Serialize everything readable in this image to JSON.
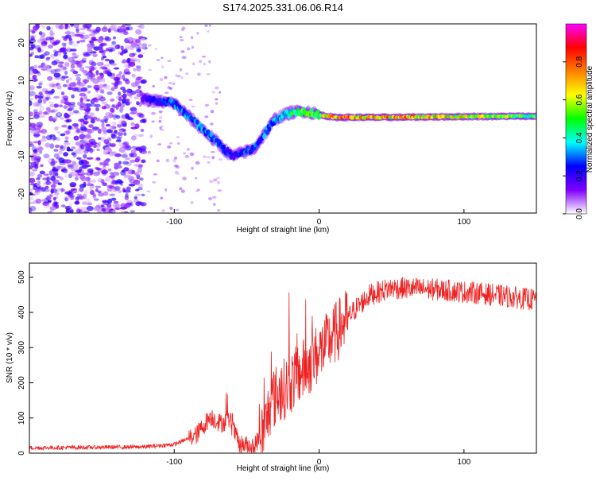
{
  "title": "S174.2025.331.06.06.R14",
  "chart_data": [
    {
      "type": "heatmap",
      "name": "spectrogram",
      "xlabel": "Height of straight line (km)",
      "ylabel": "Frequency (Hz)",
      "xlim": [
        -200,
        150
      ],
      "ylim": [
        -25,
        25
      ],
      "xticks": [
        -100,
        0,
        100
      ],
      "yticks": [
        -20,
        -10,
        0,
        10,
        20
      ],
      "colorbar": {
        "label": "Normalized spectral amplitude",
        "range": [
          0,
          1
        ],
        "ticks": [
          "0.0",
          "0.2",
          "0.4",
          "0.6",
          "0.8"
        ],
        "colors": [
          "#ffffff",
          "#8000ff",
          "#0000ff",
          "#00ffff",
          "#00ff00",
          "#ffff00",
          "#ff8000",
          "#ff0000",
          "#ff00ff"
        ]
      },
      "ridge": {
        "x": [
          -120,
          -100,
          -80,
          -60,
          -45,
          -30,
          -20,
          -10,
          0,
          10,
          50,
          100,
          150
        ],
        "f": [
          5,
          4,
          -3,
          -10,
          -8,
          0,
          1.5,
          2,
          1,
          0.3,
          0.3,
          0.5,
          0.6
        ],
        "peak_amplitude": [
          0.25,
          0.35,
          0.4,
          0.3,
          0.35,
          0.4,
          0.55,
          0.6,
          0.65,
          0.95,
          0.9,
          0.75,
          0.6
        ]
      },
      "noise_region_x": [
        -200,
        -120
      ]
    },
    {
      "type": "line",
      "name": "snr",
      "xlabel": "Height of straight line (km)",
      "ylabel": "SNR (10 * v/v)",
      "xlim": [
        -200,
        150
      ],
      "ylim": [
        0,
        540
      ],
      "xticks": [
        -100,
        0,
        100
      ],
      "yticks": [
        0,
        100,
        200,
        300,
        400,
        500
      ],
      "color": "#ee2222",
      "trend": {
        "x": [
          -200,
          -120,
          -100,
          -85,
          -75,
          -68,
          -62,
          -55,
          -45,
          -38,
          -33,
          -28,
          -22,
          -15,
          -5,
          5,
          15,
          25,
          35,
          50,
          80,
          110,
          130,
          150
        ],
        "y": [
          15,
          18,
          25,
          50,
          105,
          85,
          95,
          25,
          20,
          60,
          150,
          170,
          190,
          220,
          260,
          310,
          360,
          410,
          450,
          470,
          465,
          455,
          445,
          435
        ]
      }
    }
  ]
}
